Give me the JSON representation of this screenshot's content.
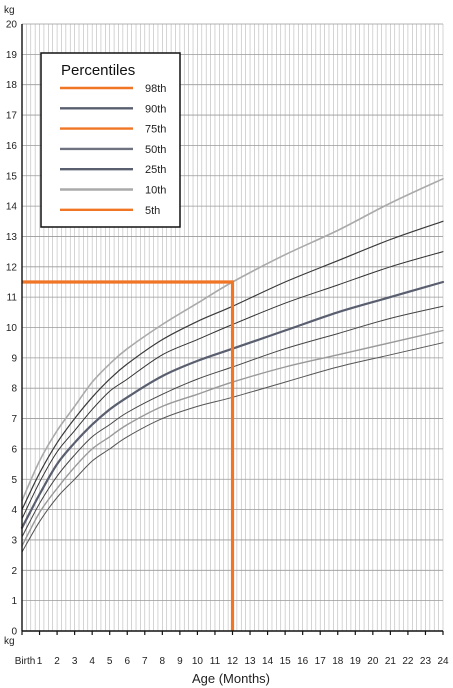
{
  "chart_data": {
    "type": "line",
    "title": "",
    "xlabel": "Age (Months)",
    "ylabel": "kg",
    "y_unit_top": "kg",
    "y_unit_bottom": "kg",
    "xlim": [
      0,
      24
    ],
    "ylim": [
      0,
      20
    ],
    "grid": true,
    "x_ticks": [
      "Birth",
      "1",
      "2",
      "3",
      "4",
      "5",
      "6",
      "7",
      "8",
      "9",
      "10",
      "11",
      "12",
      "13",
      "14",
      "15",
      "16",
      "17",
      "18",
      "19",
      "20",
      "21",
      "22",
      "23",
      "24"
    ],
    "y_ticks": [
      "0",
      "1",
      "2",
      "3",
      "4",
      "5",
      "6",
      "7",
      "8",
      "9",
      "10",
      "11",
      "12",
      "13",
      "14",
      "15",
      "16",
      "17",
      "18",
      "19",
      "20"
    ],
    "x": [
      0,
      1,
      2,
      3,
      4,
      5,
      6,
      8,
      10,
      12,
      15,
      18,
      21,
      24
    ],
    "series": [
      {
        "name": "98th",
        "color": "#aaaaaa",
        "width": 1.6,
        "values": [
          4.3,
          5.6,
          6.6,
          7.4,
          8.2,
          8.8,
          9.3,
          10.1,
          10.8,
          11.5,
          12.4,
          13.2,
          14.1,
          14.9
        ]
      },
      {
        "name": "90th",
        "color": "#3a3a3a",
        "width": 1.2,
        "values": [
          4.0,
          5.2,
          6.2,
          7.0,
          7.7,
          8.3,
          8.8,
          9.6,
          10.2,
          10.7,
          11.5,
          12.2,
          12.9,
          13.5
        ]
      },
      {
        "name": "75th",
        "color": "#333333",
        "width": 1.0,
        "values": [
          3.7,
          4.9,
          5.9,
          6.6,
          7.3,
          7.9,
          8.3,
          9.1,
          9.6,
          10.1,
          10.8,
          11.4,
          12.0,
          12.5
        ]
      },
      {
        "name": "50th",
        "color": "#5a5f70",
        "width": 2.2,
        "values": [
          3.4,
          4.5,
          5.5,
          6.2,
          6.8,
          7.3,
          7.7,
          8.4,
          8.9,
          9.3,
          9.9,
          10.5,
          11.0,
          11.5
        ]
      },
      {
        "name": "25th",
        "color": "#444444",
        "width": 1.0,
        "values": [
          3.1,
          4.2,
          5.1,
          5.8,
          6.4,
          6.8,
          7.2,
          7.8,
          8.3,
          8.7,
          9.3,
          9.8,
          10.3,
          10.7
        ]
      },
      {
        "name": "10th",
        "color": "#999999",
        "width": 1.4,
        "values": [
          2.8,
          3.9,
          4.7,
          5.4,
          6.0,
          6.4,
          6.8,
          7.4,
          7.8,
          8.2,
          8.7,
          9.1,
          9.5,
          9.9
        ]
      },
      {
        "name": "5th",
        "color": "#555555",
        "width": 1.0,
        "values": [
          2.6,
          3.6,
          4.4,
          5.0,
          5.6,
          6.0,
          6.4,
          7.0,
          7.4,
          7.7,
          8.2,
          8.7,
          9.1,
          9.5
        ]
      }
    ],
    "marker": {
      "age_months": 12,
      "weight_kg": 11.5,
      "color": "#f07626"
    },
    "legend": {
      "title": "Percentiles",
      "placement": "top-left",
      "items": [
        {
          "label": "98th",
          "color": "#f07626"
        },
        {
          "label": "90th",
          "color": "#5a5f70"
        },
        {
          "label": "75th",
          "color": "#f07626"
        },
        {
          "label": "50th",
          "color": "#6f7380"
        },
        {
          "label": "25th",
          "color": "#5a5f70"
        },
        {
          "label": "10th",
          "color": "#aaaaaa"
        },
        {
          "label": "5th",
          "color": "#f07626"
        }
      ]
    }
  }
}
